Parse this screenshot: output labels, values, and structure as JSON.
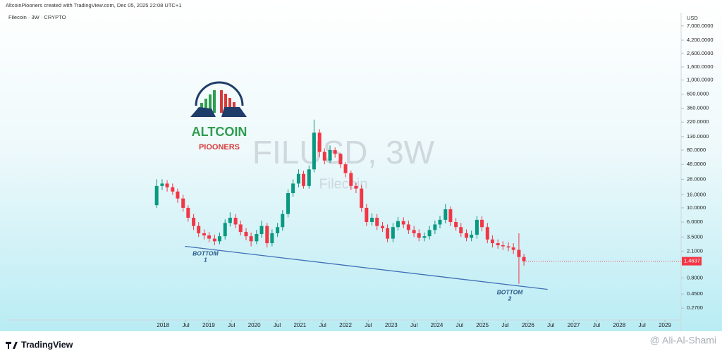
{
  "chart_data": {
    "type": "candlestick",
    "header": "AltcoinPiooners created with TradingView.com, Dec 05, 2025 22:08 UTC+1",
    "symbol_info": "Filecoin · 3W · CRYPTO",
    "watermark": "FILUSD, 3W",
    "watermark_sub": "Filecoin",
    "currency": "USD",
    "logo": {
      "title": "ALTCOIN",
      "subtitle": "PIOONERS"
    },
    "brand": "TradingView",
    "credit": "@ Ali-Al-Shami",
    "log_scale": true,
    "up_color": "#089981",
    "down_color": "#f23645",
    "xlim": [
      2014.55,
      2029.34
    ],
    "ylim": [
      0.13,
      11300
    ],
    "xticks": [
      {
        "value": 2018,
        "label": "2018"
      },
      {
        "value": 2018.5,
        "label": "Jul"
      },
      {
        "value": 2019,
        "label": "2019"
      },
      {
        "value": 2019.5,
        "label": "Jul"
      },
      {
        "value": 2020,
        "label": "2020"
      },
      {
        "value": 2020.5,
        "label": "Jul"
      },
      {
        "value": 2021,
        "label": "2021"
      },
      {
        "value": 2021.5,
        "label": "Jul"
      },
      {
        "value": 2022,
        "label": "2022"
      },
      {
        "value": 2022.5,
        "label": "Jul"
      },
      {
        "value": 2023,
        "label": "2023"
      },
      {
        "value": 2023.5,
        "label": "Jul"
      },
      {
        "value": 2024,
        "label": "2024"
      },
      {
        "value": 2024.5,
        "label": "Jul"
      },
      {
        "value": 2025,
        "label": "2025"
      },
      {
        "value": 2025.5,
        "label": "Jul"
      },
      {
        "value": 2026,
        "label": "2026"
      },
      {
        "value": 2026.5,
        "label": "Jul"
      },
      {
        "value": 2027,
        "label": "2027"
      },
      {
        "value": 2027.5,
        "label": "Jul"
      },
      {
        "value": 2028,
        "label": "2028"
      },
      {
        "value": 2028.5,
        "label": "Jul"
      },
      {
        "value": 2029,
        "label": "2029"
      }
    ],
    "yticks": [
      {
        "value": 7000,
        "label": "7,000.0000"
      },
      {
        "value": 4200,
        "label": "4,200.0000"
      },
      {
        "value": 2600,
        "label": "2,600.0000"
      },
      {
        "value": 1600,
        "label": "1,600.0000"
      },
      {
        "value": 1000,
        "label": "1,000.0000"
      },
      {
        "value": 600,
        "label": "600.0000"
      },
      {
        "value": 360,
        "label": "360.0000"
      },
      {
        "value": 220,
        "label": "220.0000"
      },
      {
        "value": 130,
        "label": "130.0000"
      },
      {
        "value": 80,
        "label": "80.0000"
      },
      {
        "value": 48,
        "label": "48.0000"
      },
      {
        "value": 28,
        "label": "28.0000"
      },
      {
        "value": 16,
        "label": "16.0000"
      },
      {
        "value": 10,
        "label": "10.0000"
      },
      {
        "value": 6,
        "label": "6.0000"
      },
      {
        "value": 3.5,
        "label": "3.5000"
      },
      {
        "value": 2.1,
        "label": "2.1000"
      },
      {
        "value": 0.8,
        "label": "0.8000"
      },
      {
        "value": 0.45,
        "label": "0.4500"
      },
      {
        "value": 0.27,
        "label": "0.2700"
      }
    ],
    "x": [
      2017.86,
      2017.98,
      2018.09,
      2018.21,
      2018.32,
      2018.44,
      2018.55,
      2018.67,
      2018.78,
      2018.9,
      2019.01,
      2019.13,
      2019.24,
      2019.36,
      2019.47,
      2019.59,
      2019.7,
      2019.82,
      2019.93,
      2020.05,
      2020.16,
      2020.28,
      2020.39,
      2020.51,
      2020.62,
      2020.74,
      2020.85,
      2020.97,
      2021.08,
      2021.2,
      2021.31,
      2021.43,
      2021.54,
      2021.66,
      2021.77,
      2021.89,
      2022.0,
      2022.12,
      2022.23,
      2022.35,
      2022.46,
      2022.58,
      2022.69,
      2022.81,
      2022.92,
      2023.04,
      2023.15,
      2023.27,
      2023.38,
      2023.5,
      2023.61,
      2023.73,
      2023.84,
      2023.96,
      2024.07,
      2024.19,
      2024.3,
      2024.42,
      2024.53,
      2024.65,
      2024.76,
      2024.88,
      2024.99,
      2025.11,
      2025.22,
      2025.34,
      2025.45,
      2025.57,
      2025.68,
      2025.8,
      2025.91
    ],
    "open": [
      11,
      22,
      24,
      21,
      18,
      14,
      10,
      7,
      5.2,
      4.0,
      3.7,
      3.3,
      3.0,
      3.6,
      5.8,
      7.0,
      5.5,
      4.2,
      3.6,
      3.0,
      3.9,
      5.2,
      2.8,
      4.0,
      5.0,
      8.0,
      17,
      24,
      34,
      22,
      40,
      150,
      75,
      55,
      80,
      70,
      48,
      35,
      22,
      20,
      10,
      6,
      7,
      5.2,
      4.8,
      3.3,
      5.0,
      6.2,
      5.5,
      4.5,
      4.0,
      3.4,
      3.6,
      4.5,
      5.5,
      6.5,
      9.5,
      6.0,
      5.0,
      4.0,
      3.4,
      3.8,
      6.5,
      5.0,
      3.2,
      2.8,
      2.6,
      2.5,
      2.4,
      2.2,
      1.7
    ],
    "high": [
      28,
      28,
      27,
      24,
      20,
      16,
      11,
      8,
      6,
      4.6,
      4.2,
      3.8,
      4.1,
      6.6,
      8.5,
      8,
      6.3,
      4.8,
      4.1,
      4.5,
      6.3,
      5.8,
      4.6,
      5.8,
      9.2,
      19.5,
      28,
      40,
      38,
      46,
      240,
      170,
      85,
      95,
      88,
      72,
      52,
      38,
      25,
      23,
      11.5,
      8.2,
      8,
      6,
      5.5,
      5.8,
      7.2,
      7.1,
      6.3,
      5.2,
      4.6,
      4.1,
      5.2,
      6.3,
      7.5,
      11.5,
      10.5,
      6.9,
      5.8,
      4.6,
      4.4,
      7.5,
      7.4,
      5.8,
      3.7,
      3.2,
      3.0,
      2.9,
      2.8,
      4.0,
      1.9
    ],
    "low": [
      10,
      19,
      18,
      16,
      12,
      8.7,
      6.1,
      4.5,
      3.5,
      3.2,
      2.9,
      2.6,
      2.7,
      3.2,
      5.1,
      4.8,
      3.7,
      3.1,
      2.5,
      2.7,
      3.4,
      2.4,
      2.5,
      3.5,
      4.4,
      7.1,
      15,
      21,
      20,
      20,
      36,
      62,
      48,
      50,
      61,
      42,
      30,
      19,
      17,
      8.7,
      5.2,
      5.3,
      4.5,
      4.2,
      2.9,
      2.9,
      4.4,
      4.8,
      3.9,
      3.5,
      3.0,
      3.0,
      3.2,
      3.9,
      4.8,
      5.7,
      5.2,
      4.4,
      3.5,
      3.0,
      3.0,
      3.3,
      4.3,
      2.8,
      2.4,
      2.3,
      2.2,
      2.1,
      1.9,
      0.65,
      1.25
    ],
    "close": [
      22,
      24,
      21,
      18,
      14,
      10,
      7,
      5.2,
      4.0,
      3.7,
      3.3,
      3.0,
      3.6,
      5.8,
      7.0,
      5.5,
      4.2,
      3.6,
      3.0,
      3.9,
      5.2,
      2.8,
      4.0,
      5.0,
      8.0,
      17,
      24,
      34,
      22,
      40,
      150,
      75,
      55,
      80,
      70,
      48,
      35,
      22,
      20,
      10,
      6,
      7,
      5.2,
      4.8,
      3.3,
      5.0,
      6.2,
      5.5,
      4.5,
      4.0,
      3.4,
      3.6,
      4.5,
      5.5,
      6.5,
      9.5,
      6.0,
      5.0,
      4.0,
      3.4,
      3.8,
      6.5,
      5.0,
      3.2,
      2.8,
      2.6,
      2.5,
      2.4,
      2.2,
      1.7,
      1.4637
    ],
    "trendline": {
      "color": "#3f6fb5",
      "x": [
        2018.48,
        2026.43
      ],
      "y": [
        2.5,
        0.53
      ]
    },
    "annotations": [
      {
        "text": "BOTTOM",
        "sub": "1",
        "x": 2018.93,
        "y": 1.9
      },
      {
        "text": "BOTTOM",
        "sub": "2",
        "x": 2025.6,
        "y": 0.47
      }
    ]
  }
}
